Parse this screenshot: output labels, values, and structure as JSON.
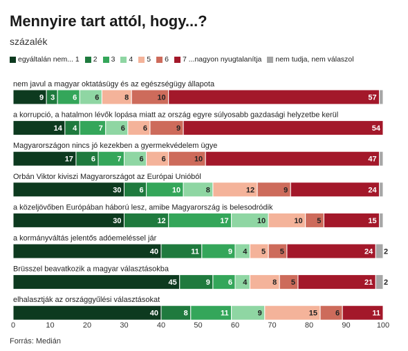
{
  "header": {
    "title": "Mennyire tart attól, hogy...?",
    "subtitle": "százalék"
  },
  "footer": {
    "source": "Forrás: Medián"
  },
  "chart_data": {
    "type": "bar",
    "orientation": "horizontal",
    "stacked": true,
    "xlim": [
      0,
      100
    ],
    "xticks": [
      "0",
      "10",
      "20",
      "30",
      "40",
      "50",
      "60",
      "70",
      "80",
      "90",
      "100"
    ],
    "grid": false,
    "legend_position": "top",
    "series": [
      {
        "name": "egyáltalán nem... 1",
        "color": "#0d3a1f"
      },
      {
        "name": "2",
        "color": "#1f7a3e"
      },
      {
        "name": "3",
        "color": "#34a65a"
      },
      {
        "name": "4",
        "color": "#8fd6a3"
      },
      {
        "name": "5",
        "color": "#f4b39a"
      },
      {
        "name": "6",
        "color": "#cd6b5b"
      },
      {
        "name": "7 ...nagyon nyugtalanítja",
        "color": "#a3182a"
      },
      {
        "name": "nem tudja, nem válaszol",
        "color": "#a6a6a6"
      }
    ],
    "categories": [
      "nem javul a magyar oktatásügy és az egészségügy állapota",
      "a korrupció, a hatalmon lévők lopása miatt az ország egyre súlyosabb gazdasági helyzetbe kerül",
      "Magyarországon nincs jó kezekben a gyermekvédelem ügye",
      "Orbán Viktor kiviszi Magyarországot az Európai Unióból",
      "a közeljövőben Európában háború lesz, amibe Magyarország is belesodródik",
      "a kormányváltás jelentős adóemeléssel jár",
      "Brüsszel beavatkozik a magyar választásokba",
      "elhalasztják az országgyűlési választásokat"
    ],
    "values": [
      [
        9,
        3,
        6,
        6,
        8,
        10,
        57,
        1
      ],
      [
        14,
        4,
        7,
        6,
        6,
        9,
        54,
        0
      ],
      [
        17,
        6,
        7,
        6,
        6,
        10,
        47,
        1
      ],
      [
        30,
        6,
        10,
        8,
        12,
        9,
        24,
        1
      ],
      [
        30,
        12,
        17,
        10,
        10,
        5,
        15,
        1
      ],
      [
        40,
        11,
        9,
        4,
        5,
        5,
        24,
        2
      ],
      [
        45,
        9,
        6,
        4,
        8,
        5,
        21,
        2
      ],
      [
        40,
        8,
        11,
        9,
        15,
        6,
        11,
        0
      ]
    ],
    "value_labels": [
      [
        "9",
        "3",
        "6",
        "6",
        "8",
        "10",
        "57",
        ""
      ],
      [
        "14",
        "4",
        "7",
        "6",
        "6",
        "9",
        "54",
        ""
      ],
      [
        "17",
        "6",
        "7",
        "6",
        "6",
        "10",
        "47",
        ""
      ],
      [
        "30",
        "6",
        "10",
        "8",
        "12",
        "9",
        "24",
        ""
      ],
      [
        "30",
        "12",
        "17",
        "10",
        "10",
        "5",
        "15",
        ""
      ],
      [
        "40",
        "11",
        "9",
        "4",
        "5",
        "5",
        "24",
        "2"
      ],
      [
        "45",
        "9",
        "6",
        "4",
        "8",
        "5",
        "21",
        "2"
      ],
      [
        "40",
        "8",
        "11",
        "9",
        "15",
        "6",
        "11",
        ""
      ]
    ]
  }
}
